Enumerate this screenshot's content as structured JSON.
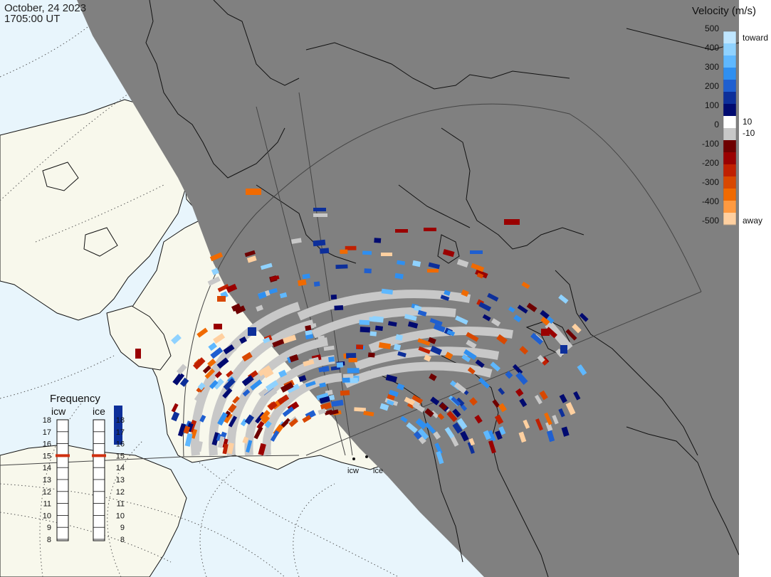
{
  "header": {
    "date": "October, 24 2023",
    "time": "1705:00 UT"
  },
  "colorbar": {
    "title": "Velocity (m/s)",
    "ticks": [
      "500",
      "400",
      "300",
      "200",
      "100",
      "0",
      "-100",
      "-200",
      "-300",
      "-400",
      "-500"
    ],
    "toward_label": "toward",
    "away_label": "away",
    "pos_threshold": "10",
    "neg_threshold": "-10",
    "colors": [
      "#bfe6ff",
      "#8fd2ff",
      "#5fb8ff",
      "#2f8ff0",
      "#1f5fd0",
      "#0d2f9a",
      "#000a70",
      "#ffffff",
      "#c8c8c8",
      "#6e0000",
      "#9a0000",
      "#c02000",
      "#d84800",
      "#f06a00",
      "#ff9a40",
      "#ffd0a0"
    ]
  },
  "frequency": {
    "title": "Frequency",
    "stations": [
      "icw",
      "ice"
    ],
    "levels": [
      "18",
      "17",
      "16",
      "15",
      "14",
      "13",
      "12",
      "11",
      "10",
      "9",
      "8"
    ],
    "icw_current": "15",
    "ice_current": "15"
  },
  "stations": {
    "icw_label": "icw",
    "ice_label": "ice"
  },
  "colors": {
    "night": "#808080",
    "land_day": "#f8f8ec",
    "ocean_day": "#e8f5fc",
    "ground_scatter": "#c8c8c8",
    "freq_marker": "#d03010"
  }
}
